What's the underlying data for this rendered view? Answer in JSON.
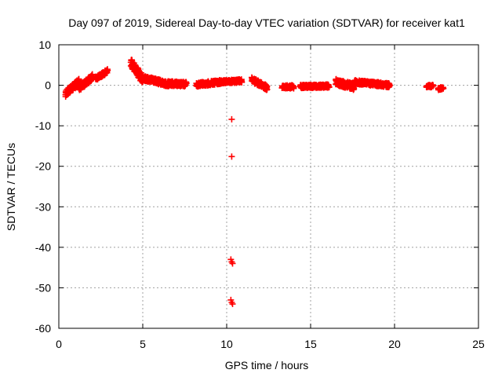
{
  "chart_data": {
    "type": "scatter",
    "title": "Day 097 of 2019, Sidereal Day-to-day VTEC variation (SDTVAR) for receiver kat1",
    "xlabel": "GPS time / hours",
    "ylabel": "SDTVAR / TECUs",
    "xlim": [
      0,
      25
    ],
    "ylim": [
      -60,
      10
    ],
    "xticks": [
      0,
      5,
      10,
      15,
      20,
      25
    ],
    "yticks": [
      10,
      0,
      -10,
      -20,
      -30,
      -40,
      -50,
      -60
    ],
    "grid": true,
    "marker": "plus",
    "color": "#ff0000",
    "series": [
      {
        "name": "kat1",
        "segments": [
          {
            "x0": 0.4,
            "x1": 1.2,
            "y0": -2.0,
            "y1": 0.8,
            "spread": 1.6
          },
          {
            "x0": 1.2,
            "x1": 2.0,
            "y0": -0.8,
            "y1": 2.0,
            "spread": 1.4
          },
          {
            "x0": 2.2,
            "x1": 2.9,
            "y0": 1.6,
            "y1": 3.5,
            "spread": 1.0
          },
          {
            "x0": 4.3,
            "x1": 5.0,
            "y0": 5.5,
            "y1": 1.5,
            "spread": 2.2
          },
          {
            "x0": 5.0,
            "x1": 6.2,
            "y0": 1.8,
            "y1": 0.6,
            "spread": 1.2
          },
          {
            "x0": 6.2,
            "x1": 7.6,
            "y0": 0.4,
            "y1": 0.3,
            "spread": 1.2
          },
          {
            "x0": 8.2,
            "x1": 9.6,
            "y0": 0.1,
            "y1": 0.8,
            "spread": 1.0
          },
          {
            "x0": 9.6,
            "x1": 10.9,
            "y0": 0.8,
            "y1": 1.1,
            "spread": 0.8
          },
          {
            "x0": 11.5,
            "x1": 12.4,
            "y0": 1.4,
            "y1": -0.6,
            "spread": 1.2
          },
          {
            "x0": 13.3,
            "x1": 14.0,
            "y0": -0.4,
            "y1": -0.4,
            "spread": 0.8
          },
          {
            "x0": 14.4,
            "x1": 16.1,
            "y0": -0.3,
            "y1": -0.2,
            "spread": 0.8
          },
          {
            "x0": 16.5,
            "x1": 17.6,
            "y0": 0.8,
            "y1": -0.4,
            "spread": 1.6
          },
          {
            "x0": 17.6,
            "x1": 19.7,
            "y0": 0.8,
            "y1": 0.0,
            "spread": 1.0
          },
          {
            "x0": 21.9,
            "x1": 22.3,
            "y0": -0.2,
            "y1": -0.2,
            "spread": 0.6
          },
          {
            "x0": 22.6,
            "x1": 22.9,
            "y0": -1.0,
            "y1": -0.6,
            "spread": 0.6
          }
        ],
        "points": [
          [
            10.3,
            -8.4
          ],
          [
            10.3,
            -17.6
          ],
          [
            10.25,
            -43.0
          ],
          [
            10.3,
            -43.6
          ],
          [
            10.35,
            -44.0
          ],
          [
            10.25,
            -53.0
          ],
          [
            10.3,
            -53.6
          ],
          [
            10.35,
            -54.0
          ]
        ]
      }
    ]
  }
}
